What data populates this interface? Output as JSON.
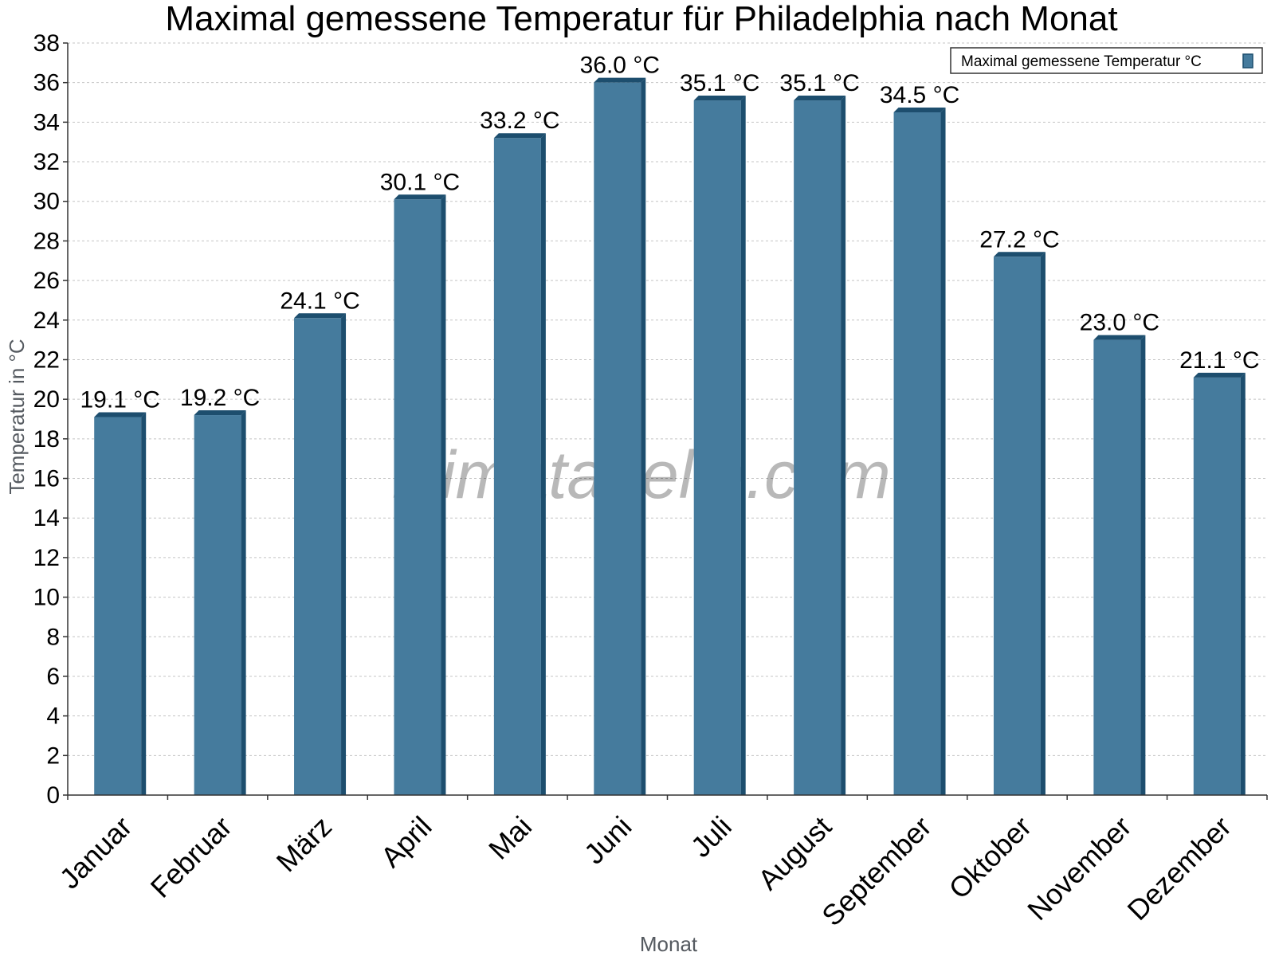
{
  "chart_data": {
    "type": "bar",
    "title": "Maximal gemessene Temperatur für Philadelphia nach Monat",
    "xlabel": "Monat",
    "ylabel": "Temperatur in °C",
    "categories": [
      "Januar",
      "Februar",
      "März",
      "April",
      "Mai",
      "Juni",
      "Juli",
      "August",
      "September",
      "Oktober",
      "November",
      "Dezember"
    ],
    "series": [
      {
        "name": "Maximal gemessene Temperatur °C",
        "values": [
          19.1,
          19.2,
          24.1,
          30.1,
          33.2,
          36.0,
          35.1,
          35.1,
          34.5,
          27.2,
          23.0,
          21.1
        ],
        "labels": [
          "19.1 °C",
          "19.2 °C",
          "24.1 °C",
          "30.1 °C",
          "33.2 °C",
          "36.0 °C",
          "35.1 °C",
          "35.1 °C",
          "34.5 °C",
          "27.2 °C",
          "23.0 °C",
          "21.1 °C"
        ],
        "color": "#457b9d",
        "edge_color": "#1d4e6e"
      }
    ],
    "ylim": [
      0,
      38
    ],
    "yticks": [
      "0",
      "2",
      "4",
      "6",
      "8",
      "10",
      "12",
      "14",
      "16",
      "18",
      "20",
      "22",
      "24",
      "26",
      "28",
      "30",
      "32",
      "34",
      "36",
      "38"
    ],
    "grid": true,
    "legend_position": "top-right",
    "watermark": "klimatabelle.com"
  }
}
